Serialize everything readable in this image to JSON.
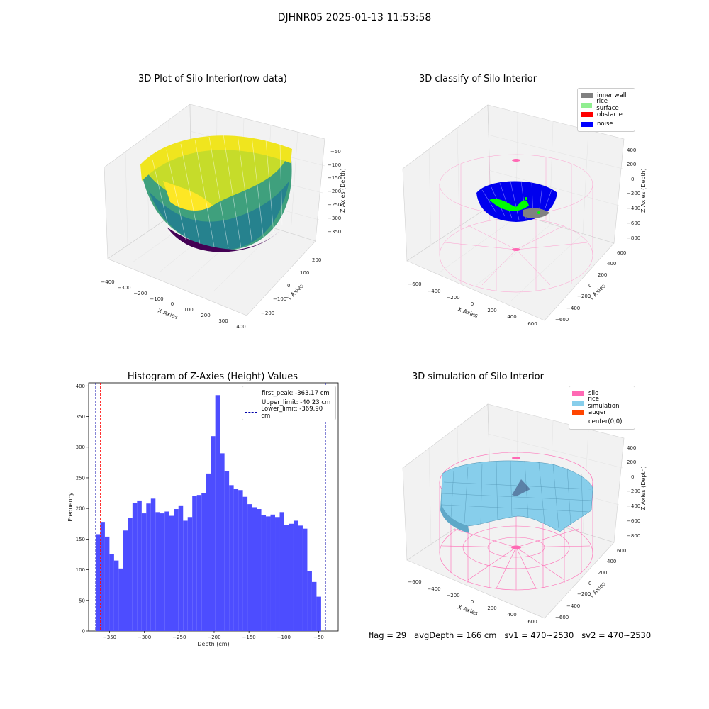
{
  "figure": {
    "suptitle": "DJHNR05 2025-01-13 11:53:58",
    "footer": {
      "flag": "flag = 29",
      "avg_depth": "avgDepth = 166 cm",
      "sv1": "sv1 = 470~2530",
      "sv2": "sv2 = 470~2530"
    }
  },
  "panels": {
    "raw": {
      "title": "3D Plot of Silo Interior(row data)",
      "xlabel": "X Axies",
      "ylabel": "Y Axies",
      "zlabel": "Z Axies (Depth)",
      "xticks": [
        "−400",
        "−300",
        "−200",
        "−100",
        "0",
        "100",
        "200",
        "300",
        "400"
      ],
      "yticks": [
        "−200",
        "−100",
        "0",
        "100",
        "200"
      ],
      "zticks": [
        "−50",
        "−100",
        "−150",
        "−200",
        "−250",
        "−300",
        "−350"
      ],
      "colormap": "viridis"
    },
    "classify": {
      "title": "3D classify of Silo Interior",
      "xlabel": "X Axies",
      "ylabel": "Y Axies",
      "zlabel": "Z Axies (Depth)",
      "xticks": [
        "−600",
        "−400",
        "−200",
        "0",
        "200",
        "400",
        "600"
      ],
      "yticks": [
        "−600",
        "−400",
        "−200",
        "0",
        "200",
        "400",
        "600"
      ],
      "zticks": [
        "400",
        "200",
        "0",
        "−200",
        "−400",
        "−600",
        "−800"
      ],
      "legend": [
        {
          "label": "inner wall",
          "color": "#808080"
        },
        {
          "label": "rice surface",
          "color": "#90ee90"
        },
        {
          "label": "obstacle",
          "color": "#ff0000"
        },
        {
          "label": "noise",
          "color": "#0000ff"
        }
      ]
    },
    "simulation": {
      "title": "3D simulation of Silo Interior",
      "xlabel": "X Axies",
      "ylabel": "Y Axies",
      "zlabel": "Z Axies (Depth)",
      "xticks": [
        "−600",
        "−400",
        "−200",
        "0",
        "200",
        "400",
        "600"
      ],
      "yticks": [
        "−600",
        "−400",
        "−200",
        "0",
        "200",
        "400",
        "600"
      ],
      "zticks": [
        "400",
        "200",
        "0",
        "−200",
        "−400",
        "−600",
        "−800"
      ],
      "legend": [
        {
          "label": "silo",
          "color": "#ff69b4"
        },
        {
          "label": "rice simulation",
          "color": "#87ceeb"
        },
        {
          "label": "auger",
          "color": "#ff4500"
        },
        {
          "label": "center(0,0)",
          "color": ""
        }
      ]
    }
  },
  "chart_data": [
    {
      "type": "bar",
      "title": "Histogram of Z-Axies (Height) Values",
      "xlabel": "Depth (cm)",
      "ylabel": "Frequency",
      "xlim": [
        -380,
        -22
      ],
      "ylim": [
        0,
        405
      ],
      "xticks": [
        -350,
        -300,
        -250,
        -200,
        -150,
        -100,
        -50
      ],
      "xtick_labels": [
        "−350",
        "−300",
        "−250",
        "−200",
        "−150",
        "−100",
        "−50"
      ],
      "yticks": [
        0,
        50,
        100,
        150,
        200,
        250,
        300,
        350,
        400
      ],
      "bar_color": "#4d4dff",
      "bins": {
        "start": -369.9,
        "width": 6.6,
        "values": [
          158,
          178,
          154,
          126,
          115,
          102,
          164,
          184,
          209,
          213,
          192,
          208,
          216,
          194,
          192,
          195,
          188,
          199,
          205,
          180,
          186,
          220,
          222,
          225,
          257,
          318,
          385,
          290,
          261,
          238,
          232,
          230,
          219,
          207,
          202,
          199,
          189,
          187,
          190,
          186,
          194,
          173,
          175,
          180,
          172,
          167,
          98,
          80,
          56
        ]
      },
      "vlines": [
        {
          "label": "first_peak: -363.17 cm",
          "x": -363.17,
          "color": "#ff0000"
        },
        {
          "label": "Upper_limit: -40.23 cm",
          "x": -40.23,
          "color": "#0000aa"
        },
        {
          "label": "Lower_limit: -369.90 cm",
          "x": -369.9,
          "color": "#0000aa"
        }
      ],
      "legend_position": "upper right"
    }
  ]
}
